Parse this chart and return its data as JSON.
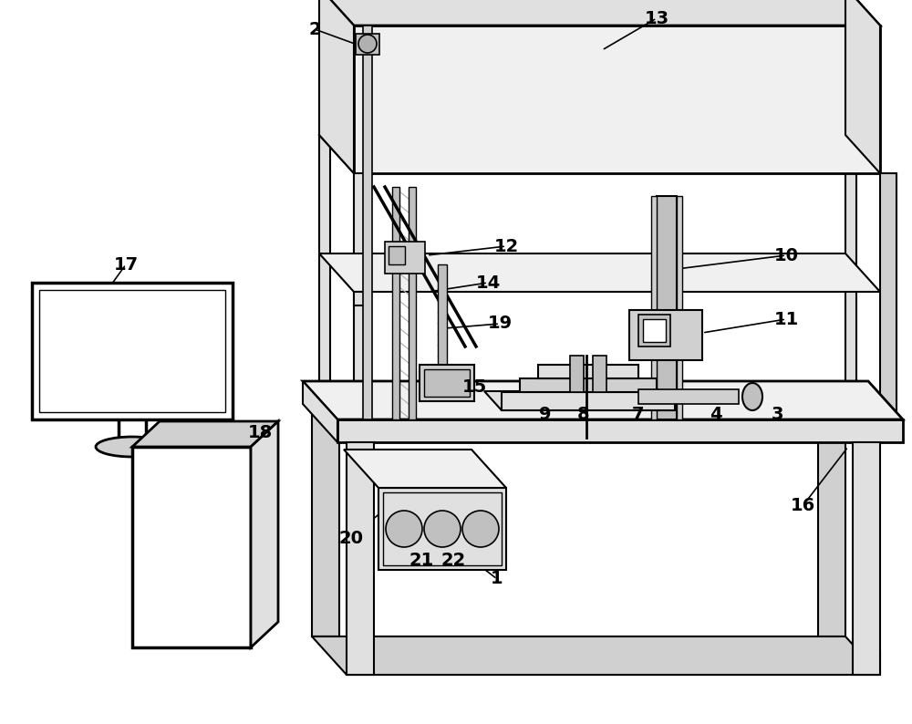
{
  "bg_color": "#ffffff",
  "lc": "#000000",
  "fig_width": 10.0,
  "fig_height": 7.94,
  "dpi": 100,
  "gray1": "#f0f0f0",
  "gray2": "#e0e0e0",
  "gray3": "#d0d0d0",
  "gray4": "#c0c0c0",
  "gray5": "#b0b0b0",
  "gray6": "#909090"
}
